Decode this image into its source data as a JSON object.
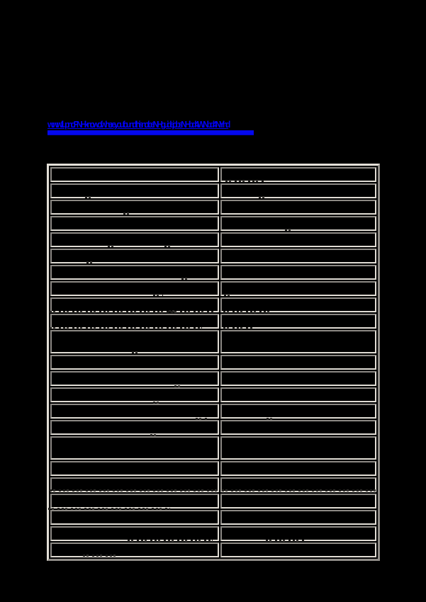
{
  "page": {
    "background": "#000000",
    "description": "document page, body text invisible (black on black)"
  },
  "link": {
    "color": "#0202f6",
    "underlined": true,
    "lines": 2,
    "line1_approx": "wwwfiliupnoFNHknowofwhereyoufoundthisnoticeNIHguidejobsNHbd4WNbd4NYhd",
    "line2_style": "fully-compressed solid blue bar (illegible)"
  },
  "table": {
    "columns": 2,
    "border_color": "#e0dcd4",
    "cell_background": "#000000",
    "text_color": "#000000 (illegible black-on-black)",
    "rows": [
      {
        "left": "",
        "right": "",
        "tall": false
      },
      {
        "left": "",
        "right": "",
        "tall": false
      },
      {
        "left": "",
        "right": "",
        "tall": false
      },
      {
        "left": "",
        "right": "",
        "tall": false
      },
      {
        "left": "",
        "right": "",
        "tall": false
      },
      {
        "left": "",
        "right": "",
        "tall": false
      },
      {
        "left": "",
        "right": "",
        "tall": false
      },
      {
        "left": "",
        "right": "",
        "tall": false
      },
      {
        "left": "",
        "right": "",
        "tall": false
      },
      {
        "left": "",
        "right": "",
        "tall": false
      },
      {
        "left": "",
        "right": "",
        "tall": true
      },
      {
        "left": "",
        "right": "",
        "tall": false
      },
      {
        "left": "",
        "right": "",
        "tall": false
      },
      {
        "left": "",
        "right": "",
        "tall": false
      },
      {
        "left": "",
        "right": "",
        "tall": false
      },
      {
        "left": "",
        "right": "",
        "tall": false
      },
      {
        "left": "",
        "right": "",
        "tall": true
      },
      {
        "left": "",
        "right": "",
        "tall": false
      },
      {
        "left": "",
        "right": "",
        "tall": false
      },
      {
        "left": "",
        "right": "",
        "tall": false
      },
      {
        "left": "",
        "right": "",
        "tall": false
      },
      {
        "left": "",
        "right": "",
        "tall": false
      },
      {
        "left": "",
        "right": "",
        "tall": false
      }
    ]
  }
}
